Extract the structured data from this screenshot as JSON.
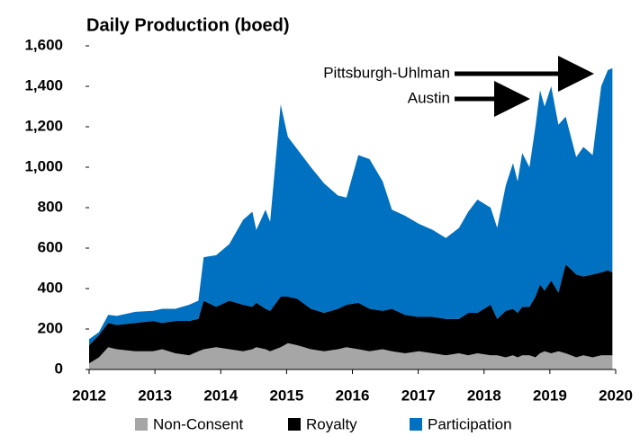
{
  "chart_data": {
    "type": "stacked_area",
    "title": "Daily Production (boed)",
    "x": [
      2012.0,
      2012.15,
      2012.29,
      2012.42,
      2012.7,
      2012.97,
      2013.11,
      2013.31,
      2013.52,
      2013.66,
      2013.74,
      2013.93,
      2014.13,
      2014.34,
      2014.48,
      2014.54,
      2014.68,
      2014.75,
      2014.91,
      2015.02,
      2015.16,
      2015.37,
      2015.57,
      2015.78,
      2015.91,
      2016.09,
      2016.26,
      2016.46,
      2016.6,
      2016.8,
      2017.01,
      2017.22,
      2017.42,
      2017.62,
      2017.76,
      2017.9,
      2018.1,
      2018.2,
      2018.33,
      2018.44,
      2018.51,
      2018.58,
      2018.69,
      2018.78,
      2018.85,
      2018.92,
      2019.02,
      2019.13,
      2019.24,
      2019.4,
      2019.51,
      2019.65,
      2019.78,
      2019.88,
      2019.95
    ],
    "series": [
      {
        "name": "Non-Consent",
        "color": "#a6a6a6",
        "values": [
          30,
          60,
          110,
          100,
          90,
          90,
          100,
          80,
          70,
          90,
          100,
          110,
          100,
          90,
          100,
          110,
          100,
          90,
          110,
          130,
          120,
          100,
          90,
          100,
          110,
          100,
          90,
          100,
          90,
          80,
          90,
          80,
          70,
          80,
          70,
          80,
          70,
          70,
          60,
          70,
          60,
          70,
          70,
          60,
          80,
          90,
          80,
          90,
          80,
          60,
          70,
          60,
          70,
          70,
          70
        ]
      },
      {
        "name": "Royalty",
        "color": "#000000",
        "values": [
          90,
          110,
          120,
          120,
          140,
          150,
          130,
          160,
          170,
          160,
          240,
          200,
          240,
          230,
          210,
          220,
          200,
          200,
          250,
          230,
          230,
          200,
          190,
          200,
          210,
          230,
          210,
          190,
          210,
          190,
          170,
          180,
          180,
          170,
          210,
          200,
          250,
          180,
          230,
          230,
          220,
          240,
          240,
          300,
          340,
          300,
          360,
          290,
          440,
          410,
          390,
          410,
          410,
          420,
          410
        ]
      },
      {
        "name": "Participation",
        "color": "#0070c0",
        "values": [
          30,
          15,
          40,
          45,
          55,
          50,
          70,
          60,
          80,
          90,
          215,
          255,
          280,
          420,
          470,
          360,
          490,
          440,
          950,
          790,
          740,
          700,
          640,
          560,
          530,
          730,
          740,
          640,
          490,
          490,
          460,
          430,
          400,
          450,
          500,
          560,
          480,
          450,
          620,
          720,
          650,
          760,
          690,
          840,
          960,
          910,
          960,
          830,
          730,
          580,
          640,
          590,
          920,
          990,
          1010
        ]
      }
    ],
    "xlim": [
      2012,
      2020
    ],
    "xticks": [
      2012,
      2013,
      2014,
      2015,
      2016,
      2017,
      2018,
      2019,
      2020
    ],
    "ylim": [
      0,
      1600
    ],
    "yticks": [
      0,
      200,
      400,
      600,
      800,
      {
        "value": 1000,
        "label": "1,000"
      },
      {
        "value": 1200,
        "label": "1,200"
      },
      {
        "value": 1400,
        "label": "1,400"
      },
      {
        "value": 1600,
        "label": "1,600"
      }
    ],
    "annotations": [
      "Pittsburgh-Uhlman",
      "Austin"
    ],
    "legend": "bottom"
  }
}
